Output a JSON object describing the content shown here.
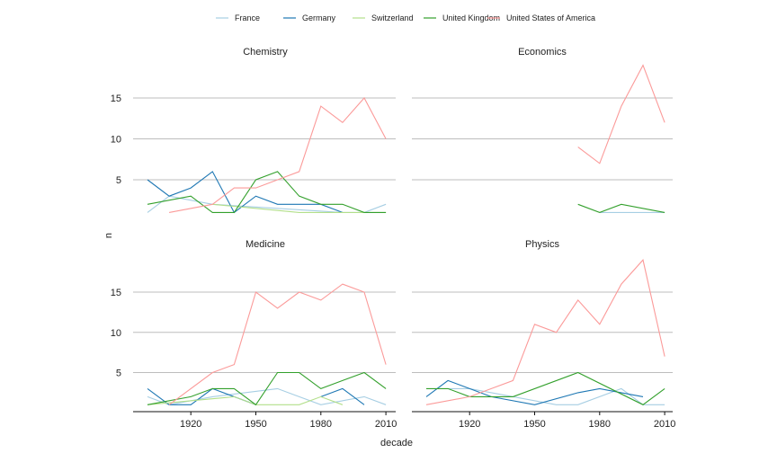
{
  "chart_data": {
    "type": "line",
    "xlabel": "decade",
    "ylabel": "n",
    "x_ticks": [
      1920,
      1950,
      1980,
      2010
    ],
    "y_ticks": [
      5,
      10,
      15
    ],
    "grid": "horizontal",
    "legend_position": "top",
    "legend": [
      {
        "name": "France",
        "color": "#a6cee3"
      },
      {
        "name": "Germany",
        "color": "#1f78b4"
      },
      {
        "name": "Switzerland",
        "color": "#b2df8a"
      },
      {
        "name": "United Kingdom",
        "color": "#33a02c"
      },
      {
        "name": "United States of America",
        "color": "#fb9a99"
      }
    ],
    "panels": [
      {
        "title": "Chemistry",
        "series": [
          {
            "name": "France",
            "x": [
              1900,
              1910,
              1930,
              1990,
              2000,
              2010
            ],
            "y": [
              1,
              3,
              2,
              1,
              1,
              2
            ]
          },
          {
            "name": "Germany",
            "x": [
              1900,
              1910,
              1920,
              1930,
              1940,
              1950,
              1960,
              1970,
              1980,
              1990
            ],
            "y": [
              5,
              3,
              4,
              6,
              1,
              3,
              2,
              2,
              2,
              1
            ]
          },
          {
            "name": "Switzerland",
            "x": [
              1930,
              1970,
              1980,
              1990,
              2000,
              2010
            ],
            "y": [
              2,
              1,
              1,
              1,
              1,
              1
            ]
          },
          {
            "name": "United Kingdom",
            "x": [
              1900,
              1920,
              1930,
              1940,
              1950,
              1960,
              1970,
              1980,
              1990,
              2000,
              2010
            ],
            "y": [
              2,
              3,
              1,
              1,
              5,
              6,
              3,
              2,
              2,
              1,
              1
            ]
          },
          {
            "name": "United States of America",
            "x": [
              1910,
              1930,
              1940,
              1950,
              1960,
              1970,
              1980,
              1990,
              2000,
              2010
            ],
            "y": [
              1,
              2,
              4,
              4,
              5,
              6,
              14,
              12,
              15,
              10
            ]
          }
        ]
      },
      {
        "title": "Economics",
        "series": [
          {
            "name": "France",
            "x": [
              1980,
              1990,
              2000,
              2010
            ],
            "y": [
              1,
              1,
              1,
              1
            ]
          },
          {
            "name": "United Kingdom",
            "x": [
              1970,
              1980,
              1990,
              2010
            ],
            "y": [
              2,
              1,
              2,
              1
            ]
          },
          {
            "name": "United States of America",
            "x": [
              1970,
              1980,
              1990,
              2000,
              2010
            ],
            "y": [
              9,
              7,
              14,
              19,
              12
            ]
          }
        ]
      },
      {
        "title": "Medicine",
        "series": [
          {
            "name": "France",
            "x": [
              1900,
              1910,
              1930,
              1960,
              1970,
              1980,
              2000,
              2010
            ],
            "y": [
              2,
              1,
              2,
              3,
              2,
              1,
              2,
              1
            ]
          },
          {
            "name": "Germany",
            "x": [
              1900,
              1910,
              1920,
              1930,
              1940,
              1950
            ],
            "y": [
              3,
              1,
              1,
              3,
              2,
              1
            ]
          },
          {
            "name": "Germany",
            "x": [
              1980,
              1990,
              2000
            ],
            "y": [
              2,
              3,
              1
            ]
          },
          {
            "name": "Switzerland",
            "x": [
              1900,
              1940,
              1950,
              1960,
              1970,
              1980,
              1990
            ],
            "y": [
              1,
              2,
              1,
              1,
              1,
              2,
              1
            ]
          },
          {
            "name": "United Kingdom",
            "x": [
              1900,
              1920,
              1930,
              1940,
              1950,
              1960,
              1970,
              1980,
              1990,
              2000,
              2010
            ],
            "y": [
              1,
              2,
              3,
              3,
              1,
              5,
              5,
              3,
              4,
              5,
              3
            ]
          },
          {
            "name": "United States of America",
            "x": [
              1910,
              1930,
              1940,
              1950,
              1960,
              1970,
              1980,
              1990,
              2000,
              2010
            ],
            "y": [
              1,
              5,
              6,
              15,
              13,
              15,
              14,
              16,
              15,
              6
            ]
          }
        ]
      },
      {
        "title": "Physics",
        "series": [
          {
            "name": "France",
            "x": [
              1910,
              1920,
              1960,
              1970,
              1990,
              2000,
              2010
            ],
            "y": [
              3,
              3,
              1,
              1,
              3,
              1,
              1
            ]
          },
          {
            "name": "Germany",
            "x": [
              1900,
              1910,
              1920,
              1930,
              1950,
              1970,
              1980,
              2000
            ],
            "y": [
              2,
              4,
              3,
              2,
              1,
              2.5,
              3,
              2
            ]
          },
          {
            "name": "United Kingdom",
            "x": [
              1900,
              1910,
              1920,
              1940,
              1970,
              2000,
              2010
            ],
            "y": [
              3,
              3,
              2,
              2,
              5,
              1,
              3
            ]
          },
          {
            "name": "United States of America",
            "x": [
              1900,
              1920,
              1930,
              1940,
              1950,
              1960,
              1970,
              1980,
              1990,
              2000,
              2010
            ],
            "y": [
              1,
              2,
              3,
              4,
              11,
              10,
              14,
              11,
              16,
              19,
              7
            ]
          }
        ]
      }
    ]
  }
}
